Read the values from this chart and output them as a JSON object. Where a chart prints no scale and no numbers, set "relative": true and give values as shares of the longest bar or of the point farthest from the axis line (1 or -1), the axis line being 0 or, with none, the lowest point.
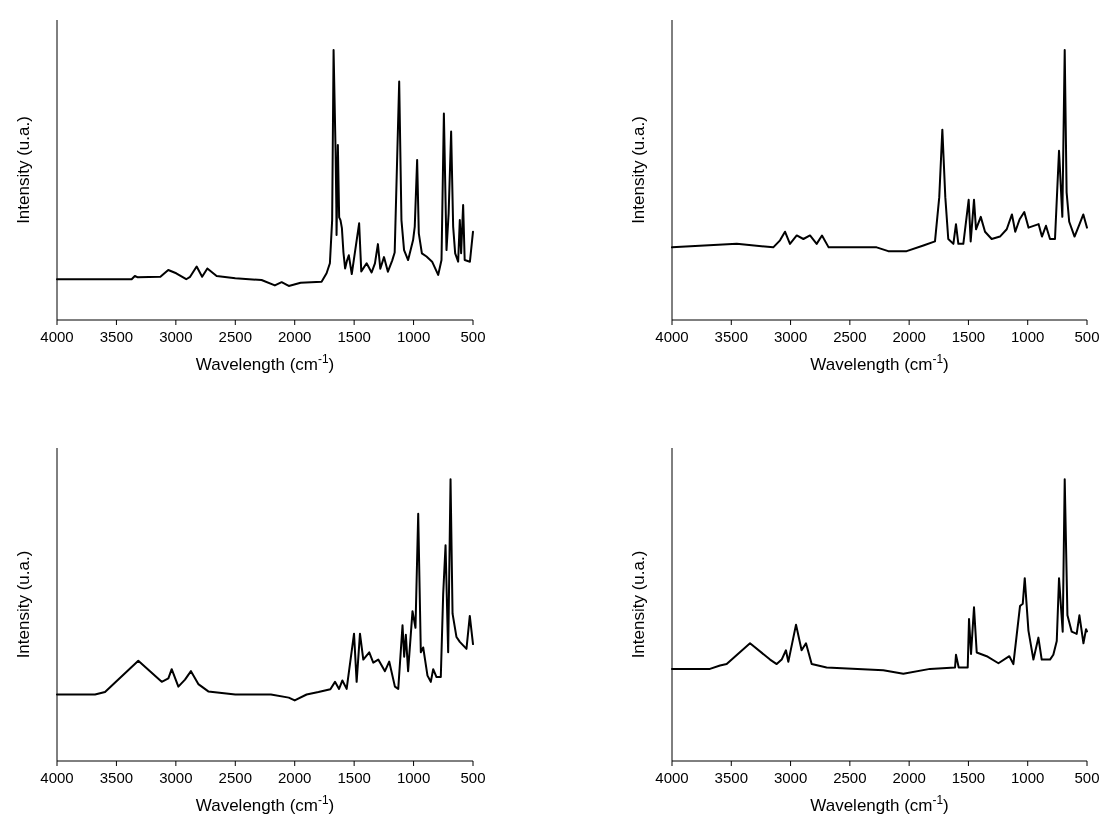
{
  "chart_data": [
    {
      "type": "line",
      "xlabel": "Wavelength (cm$^{-1}$)",
      "ylabel": "Intensity (u.a.)",
      "relative": true,
      "tick_labels": "x",
      "color": "#000000",
      "xlim": [
        4000,
        500
      ],
      "xticks": [
        4000,
        3500,
        3000,
        2500,
        2000,
        1500,
        1000,
        500
      ],
      "x": [
        4000,
        3372,
        3345,
        3320,
        3130,
        3064,
        2997,
        2913,
        2880,
        2825,
        2779,
        2735,
        2657,
        2500,
        2279,
        2167,
        2110,
        2050,
        1950,
        1774,
        1732,
        1704,
        1685,
        1673,
        1656,
        1650,
        1648,
        1637,
        1626,
        1615,
        1603,
        1590,
        1576,
        1560,
        1545,
        1520,
        1458,
        1440,
        1395,
        1353,
        1325,
        1300,
        1280,
        1249,
        1216,
        1180,
        1159,
        1121,
        1102,
        1080,
        1046,
        1004,
        990,
        970,
        956,
        930,
        891,
        844,
        793,
        765,
        745,
        723,
        705,
        684,
        667,
        650,
        625,
        611,
        600,
        583,
        570,
        526,
        500
      ],
      "values": [
        0.151,
        0.151,
        0.163,
        0.158,
        0.16,
        0.185,
        0.173,
        0.151,
        0.16,
        0.198,
        0.16,
        0.191,
        0.163,
        0.155,
        0.148,
        0.128,
        0.14,
        0.126,
        0.138,
        0.142,
        0.173,
        0.21,
        0.37,
        1.0,
        0.62,
        0.43,
        0.315,
        0.648,
        0.38,
        0.37,
        0.34,
        0.25,
        0.191,
        0.22,
        0.24,
        0.17,
        0.358,
        0.18,
        0.21,
        0.176,
        0.21,
        0.281,
        0.19,
        0.233,
        0.179,
        0.22,
        0.25,
        0.883,
        0.37,
        0.259,
        0.222,
        0.296,
        0.346,
        0.593,
        0.321,
        0.247,
        0.235,
        0.216,
        0.167,
        0.222,
        0.765,
        0.259,
        0.395,
        0.698,
        0.346,
        0.247,
        0.216,
        0.37,
        0.247,
        0.426,
        0.222,
        0.216,
        0.327
      ]
    },
    {
      "type": "line",
      "xlabel": "Wavelength (cm$^{-1}$)",
      "ylabel": "Intensity (u.a.)",
      "relative": true,
      "tick_labels": "x",
      "color": "#000000",
      "xlim": [
        4000,
        500
      ],
      "xticks": [
        4000,
        3500,
        3000,
        2500,
        2000,
        1500,
        1000,
        500
      ],
      "x": [
        4000,
        3454,
        3146,
        3089,
        3047,
        3005,
        2948,
        2892,
        2836,
        2780,
        2735,
        2679,
        2274,
        2176,
        2021,
        1880,
        1782,
        1746,
        1720,
        1695,
        1670,
        1627,
        1605,
        1585,
        1543,
        1498,
        1481,
        1453,
        1436,
        1396,
        1360,
        1304,
        1234,
        1177,
        1133,
        1105,
        1068,
        1029,
        993,
        908,
        880,
        846,
        812,
        770,
        736,
        708,
        688,
        672,
        650,
        605,
        563,
        531,
        500
      ],
      "values": [
        0.269,
        0.282,
        0.269,
        0.295,
        0.327,
        0.282,
        0.313,
        0.3,
        0.313,
        0.282,
        0.313,
        0.269,
        0.269,
        0.255,
        0.255,
        0.276,
        0.291,
        0.455,
        0.705,
        0.455,
        0.3,
        0.282,
        0.355,
        0.282,
        0.282,
        0.445,
        0.291,
        0.445,
        0.336,
        0.382,
        0.327,
        0.3,
        0.309,
        0.336,
        0.391,
        0.327,
        0.373,
        0.4,
        0.342,
        0.355,
        0.309,
        0.349,
        0.3,
        0.3,
        0.627,
        0.382,
        1.0,
        0.473,
        0.364,
        0.309,
        0.355,
        0.391,
        0.342
      ]
    },
    {
      "type": "line",
      "xlabel": "Wavelength (cm$^{-1}$)",
      "ylabel": "Intensity (u.a.)",
      "relative": true,
      "tick_labels": "x",
      "color": "#000000",
      "xlim": [
        4000,
        500
      ],
      "xticks": [
        4000,
        3500,
        3000,
        2500,
        2000,
        1500,
        1000,
        500
      ],
      "x": [
        4000,
        3680,
        3596,
        3316,
        3119,
        3063,
        3035,
        2979,
        2923,
        2873,
        2811,
        2727,
        2500,
        2200,
        2050,
        2000,
        1900,
        1800,
        1700,
        1661,
        1627,
        1599,
        1563,
        1501,
        1479,
        1451,
        1423,
        1373,
        1339,
        1297,
        1241,
        1205,
        1157,
        1129,
        1093,
        1079,
        1065,
        1046,
        1009,
        984,
        961,
        939,
        919,
        883,
        855,
        835,
        807,
        771,
        751,
        731,
        709,
        689,
        672,
        639,
        611,
        555,
        527,
        500
      ],
      "values": [
        0.236,
        0.236,
        0.245,
        0.356,
        0.281,
        0.293,
        0.326,
        0.264,
        0.289,
        0.319,
        0.273,
        0.247,
        0.236,
        0.236,
        0.225,
        0.215,
        0.236,
        0.245,
        0.255,
        0.281,
        0.256,
        0.286,
        0.256,
        0.452,
        0.281,
        0.452,
        0.36,
        0.386,
        0.349,
        0.36,
        0.319,
        0.353,
        0.264,
        0.256,
        0.482,
        0.37,
        0.448,
        0.319,
        0.532,
        0.473,
        0.878,
        0.386,
        0.403,
        0.303,
        0.281,
        0.326,
        0.298,
        0.298,
        0.591,
        0.766,
        0.386,
        1.0,
        0.523,
        0.44,
        0.423,
        0.398,
        0.515,
        0.415
      ]
    },
    {
      "type": "line",
      "xlabel": "Wavelength (cm$^{-1}$)",
      "ylabel": "Intensity (u.a.)",
      "relative": true,
      "tick_labels": "x",
      "color": "#000000",
      "xlim": [
        4000,
        500
      ],
      "xticks": [
        4000,
        3500,
        3000,
        2500,
        2000,
        1500,
        1000,
        500
      ],
      "x": [
        4000,
        3680,
        3595,
        3539,
        3342,
        3173,
        3117,
        3075,
        3039,
        3019,
        2954,
        2907,
        2870,
        2822,
        2696,
        2218,
        2049,
        1824,
        1613,
        1605,
        1582,
        1506,
        1495,
        1478,
        1453,
        1430,
        1346,
        1247,
        1155,
        1121,
        1065,
        1042,
        1025,
        994,
        952,
        910,
        882,
        812,
        784,
        755,
        736,
        705,
        688,
        665,
        629,
        587,
        564,
        530,
        508,
        500
      ],
      "values": [
        0.327,
        0.327,
        0.339,
        0.344,
        0.418,
        0.36,
        0.344,
        0.36,
        0.393,
        0.352,
        0.484,
        0.393,
        0.418,
        0.344,
        0.332,
        0.322,
        0.31,
        0.327,
        0.332,
        0.377,
        0.332,
        0.332,
        0.504,
        0.38,
        0.546,
        0.385,
        0.372,
        0.347,
        0.372,
        0.344,
        0.55,
        0.558,
        0.649,
        0.463,
        0.36,
        0.438,
        0.36,
        0.36,
        0.377,
        0.426,
        0.649,
        0.459,
        1.0,
        0.517,
        0.459,
        0.451,
        0.517,
        0.418,
        0.468,
        0.46
      ]
    }
  ]
}
